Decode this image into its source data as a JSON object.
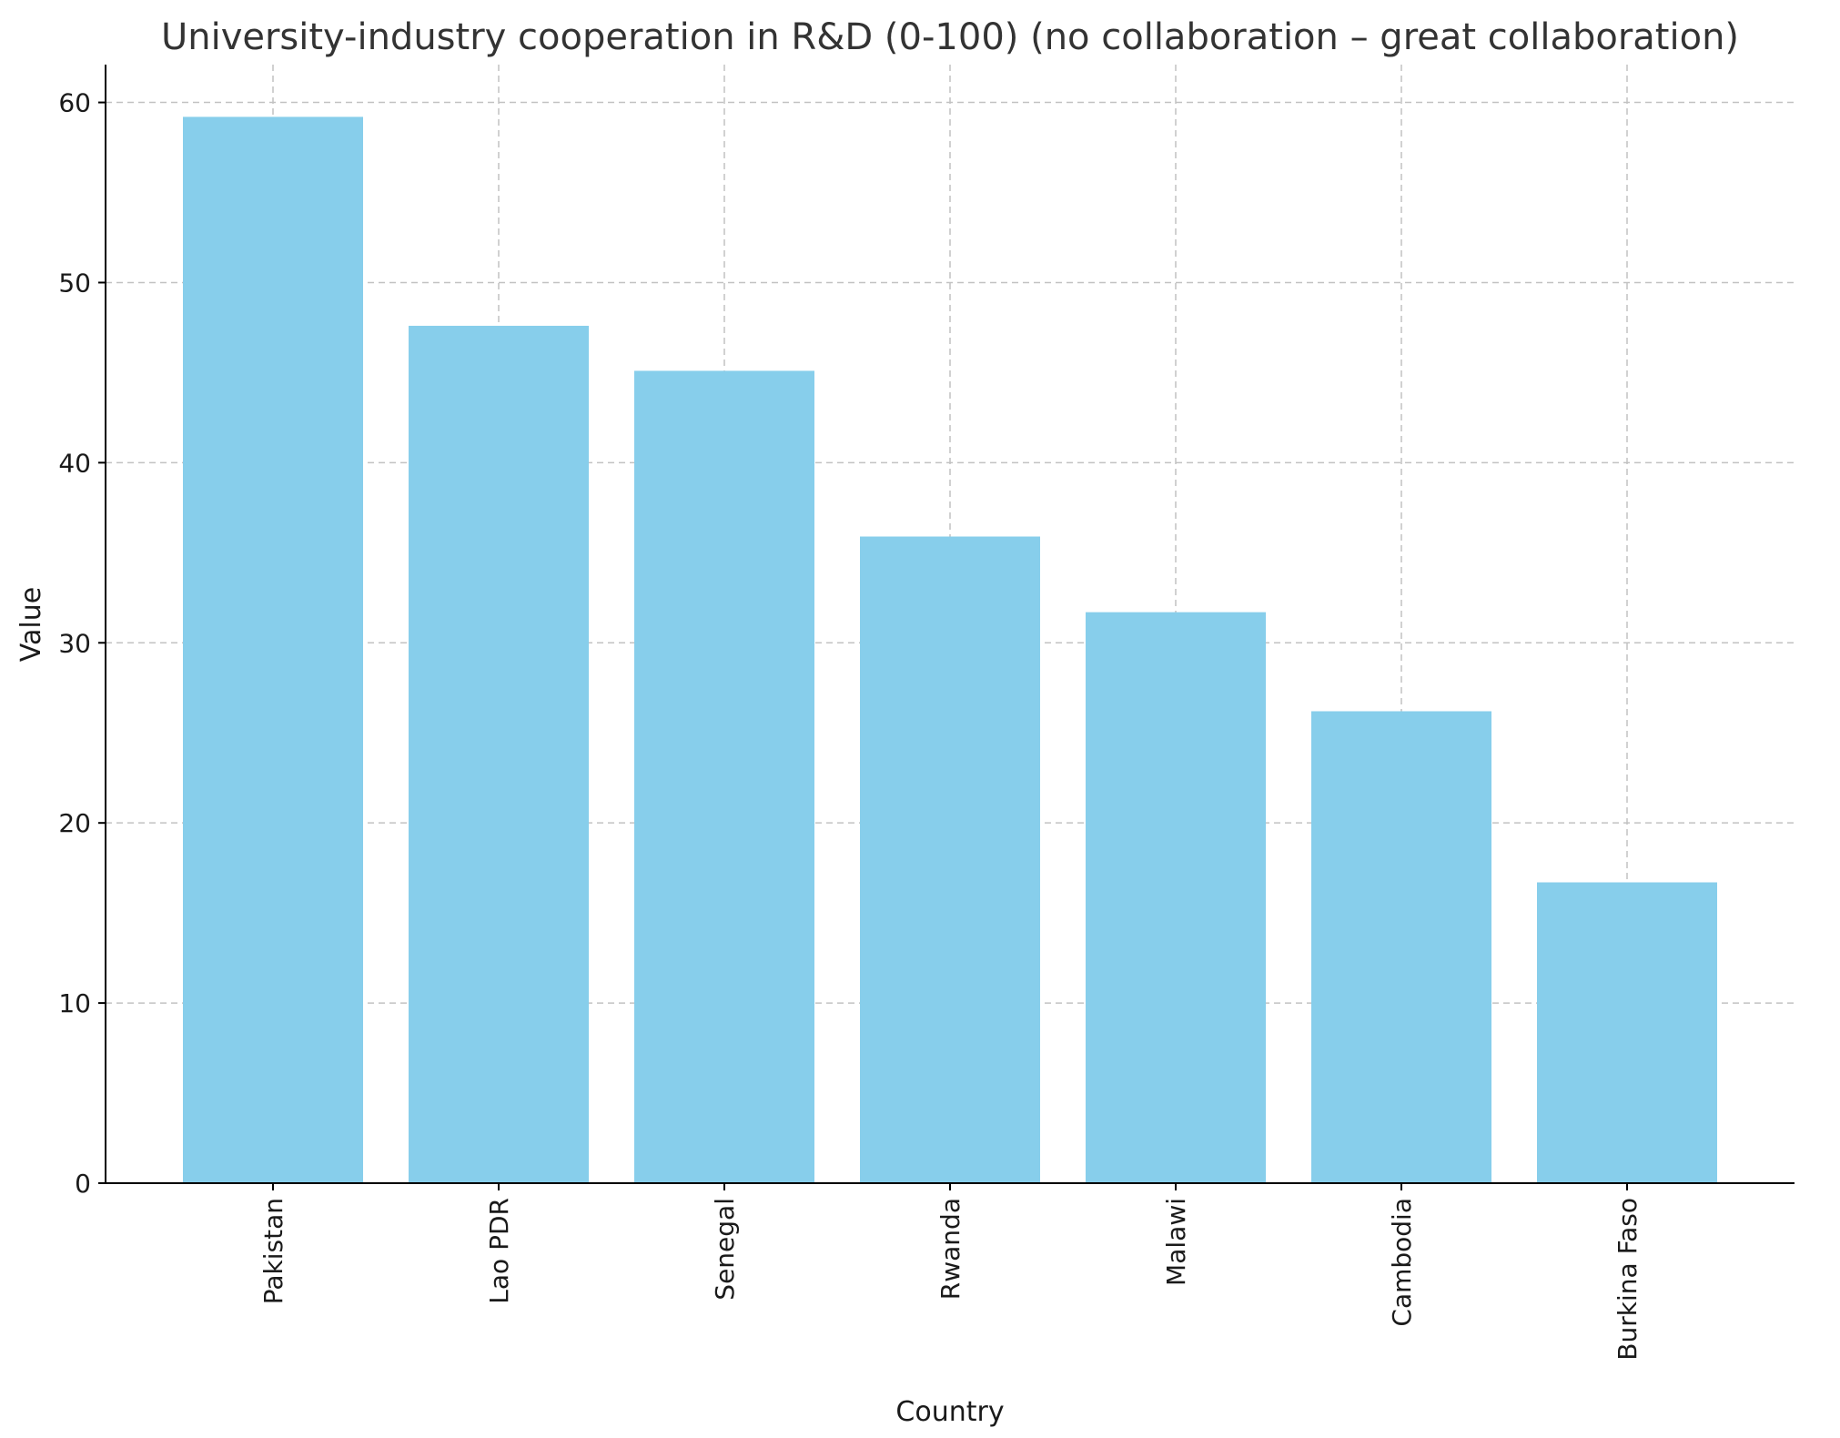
{
  "chart_data": {
    "type": "bar",
    "title": "University-industry cooperation in R&D (0-100) (no collaboration – great collaboration)",
    "xlabel": "Country",
    "ylabel": "Value",
    "categories": [
      "Pakistan",
      "Lao PDR",
      "Senegal",
      "Rwanda",
      "Malawi",
      "Cambodia",
      "Burkina Faso"
    ],
    "values": [
      59.2,
      47.6,
      45.1,
      35.9,
      31.7,
      26.2,
      16.7
    ],
    "ylim": [
      0,
      62.1
    ],
    "yticks": [
      0,
      10,
      20,
      30,
      40,
      50,
      60
    ],
    "grid": true,
    "bar_color": "#87CEEB",
    "legend": "none"
  }
}
